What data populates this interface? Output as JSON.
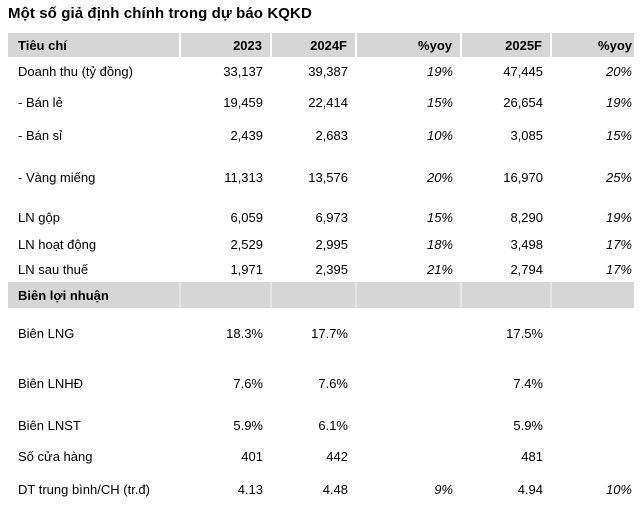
{
  "title": "Một số giả định chính trong dự báo KQKD",
  "colors": {
    "header_bg": "#d6d6d6",
    "section_bg": "#d6d6d6",
    "text": "#000000",
    "background": "#ffffff"
  },
  "chart_data": {
    "type": "table",
    "title": "Một số giả định chính trong dự báo KQKD",
    "columns": [
      "Tiêu chí",
      "2023",
      "2024F",
      "%yoy",
      "2025F",
      "%yoy"
    ],
    "rows": [
      {
        "cells": [
          "Doanh thu (tỷ đồng)",
          "33,137",
          "39,387",
          "19%",
          "47,445",
          "20%"
        ]
      },
      {
        "cells": [
          "- Bán lẻ",
          "19,459",
          "22,414",
          "15%",
          "26,654",
          "19%"
        ]
      },
      {
        "cells": [
          "- Bán sỉ",
          "2,439",
          "2,683",
          "10%",
          "3,085",
          "15%"
        ]
      },
      {
        "cells": [
          "- Vàng miếng",
          "11,313",
          "13,576",
          "20%",
          "16,970",
          "25%"
        ]
      },
      {
        "cells": [
          "LN gộp",
          "6,059",
          "6,973",
          "15%",
          "8,290",
          "19%"
        ]
      },
      {
        "cells": [
          "LN hoạt động",
          "2,529",
          "2,995",
          "18%",
          "3,498",
          "17%"
        ]
      },
      {
        "cells": [
          "LN sau thuế",
          "1,971",
          "2,395",
          "21%",
          "2,794",
          "17%"
        ]
      },
      {
        "cells": [
          "Biên lợi nhuận",
          "",
          "",
          "",
          "",
          ""
        ],
        "section": true
      },
      {
        "cells": [
          "Biên LNG",
          "18.3%",
          "17.7%",
          "",
          "17.5%",
          ""
        ]
      },
      {
        "cells": [
          "Biên LNHĐ",
          "7.6%",
          "7.6%",
          "",
          "7.4%",
          ""
        ]
      },
      {
        "cells": [
          "Biên LNST",
          "5.9%",
          "6.1%",
          "",
          "5.9%",
          ""
        ]
      },
      {
        "cells": [
          "Số cửa hàng",
          "401",
          "442",
          "",
          "481",
          ""
        ]
      },
      {
        "cells": [
          "DT trung bình/CH (tr.đ)",
          "4.13",
          "4.48",
          "9%",
          "4.94",
          "10%"
        ]
      }
    ],
    "layout": {
      "grid": false,
      "legend": false,
      "yoy_columns_italic": true
    }
  }
}
